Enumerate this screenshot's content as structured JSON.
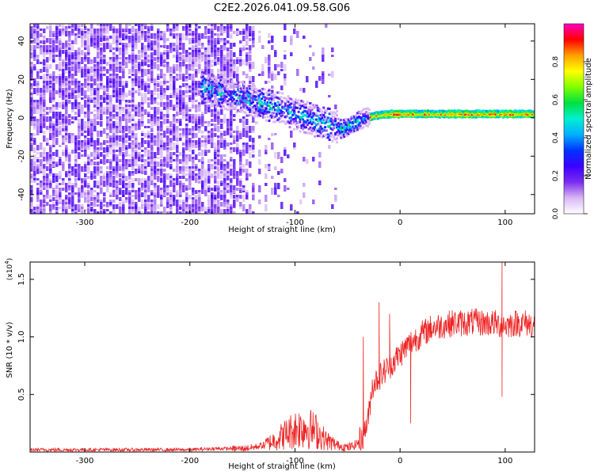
{
  "title": "C2E2.2026.041.09.58.G06",
  "chart_data": [
    {
      "type": "heatmap",
      "title": "C2E2.2026.041.09.58.G06",
      "xlabel": "Height of straight line (km)",
      "ylabel": "Frequency (Hz)",
      "xlim": [
        -352,
        128
      ],
      "ylim": [
        -50,
        49
      ],
      "xticks": [
        -300,
        -200,
        -100,
        0,
        100
      ],
      "yticks": [
        -40,
        -20,
        0,
        20,
        40
      ],
      "signal_trace": {
        "x": [
          -190,
          -165,
          -150,
          -130,
          -110,
          -95,
          -80,
          -65,
          -55,
          -45,
          -35,
          -25,
          -10,
          0,
          20,
          60,
          100,
          125
        ],
        "frequency_hz": [
          16,
          12,
          10,
          7,
          4,
          1,
          -2,
          -4,
          -6,
          -3,
          0,
          1,
          2,
          2,
          2,
          2,
          2,
          2
        ]
      },
      "colorbar": {
        "label": "Normalized spectral amplitude",
        "range": [
          0,
          1
        ],
        "ticks": [
          "0.0",
          "0.2",
          "0.4",
          "0.6",
          "0.8"
        ],
        "colors": [
          "#ffffff",
          "#d8b8f4",
          "#7b2cf0",
          "#3c00ff",
          "#0033ff",
          "#00b0ff",
          "#00f0d0",
          "#00e040",
          "#80ff00",
          "#ffff00",
          "#ffa000",
          "#ff0000",
          "#ff00c0"
        ]
      }
    },
    {
      "type": "line",
      "xlabel": "Height of straight line (km)",
      "ylabel": "SNR (10 * v/v)",
      "y_scale_label": "(x10",
      "y_scale_exp": "4",
      "y_scale_close": ")",
      "xlim": [
        -352,
        128
      ],
      "ylim": [
        0,
        1.65
      ],
      "xticks": [
        -300,
        -200,
        -100,
        0,
        100
      ],
      "yticks": [
        "0.5",
        "1.0",
        "1.5"
      ],
      "color": "#ee2222",
      "series": [
        {
          "name": "SNR",
          "x": [
            -352,
            -300,
            -250,
            -200,
            -175,
            -150,
            -140,
            -130,
            -120,
            -110,
            -100,
            -90,
            -80,
            -70,
            -60,
            -50,
            -45,
            -40,
            -35,
            -30,
            -27,
            -25,
            -20,
            -15,
            -10,
            -5,
            0,
            5,
            10,
            20,
            30,
            40,
            50,
            60,
            70,
            80,
            90,
            95,
            97,
            100,
            110,
            120,
            128
          ],
          "y": [
            0.02,
            0.02,
            0.02,
            0.02,
            0.03,
            0.03,
            0.04,
            0.06,
            0.1,
            0.15,
            0.2,
            0.22,
            0.18,
            0.1,
            0.06,
            0.04,
            0.05,
            0.08,
            0.15,
            0.3,
            0.55,
            0.6,
            0.65,
            0.7,
            0.75,
            0.8,
            0.85,
            0.9,
            0.95,
            1.02,
            1.08,
            1.1,
            1.12,
            1.12,
            1.13,
            1.12,
            1.12,
            1.1,
            1.12,
            1.1,
            1.12,
            1.12,
            1.1
          ]
        }
      ],
      "peaks": [
        {
          "x": -35,
          "y": 1.0
        },
        {
          "x": -20,
          "y": 1.3
        },
        {
          "x": -10,
          "y": 1.2
        },
        {
          "x": 97,
          "y": 1.65
        }
      ],
      "dips": [
        {
          "x": 10,
          "y": 0.25
        },
        {
          "x": 97,
          "y": 0.48
        }
      ]
    }
  ]
}
